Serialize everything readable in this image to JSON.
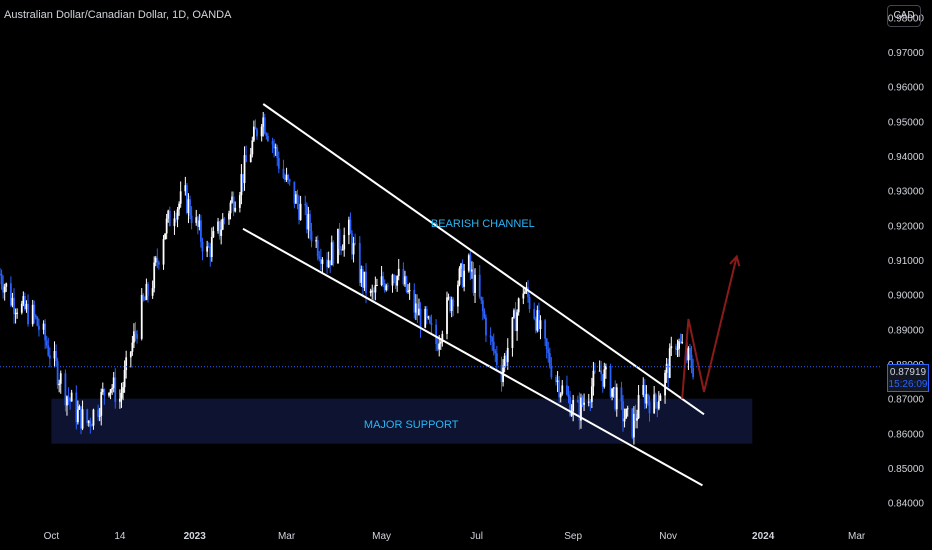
{
  "header": {
    "title": "Australian Dollar/Canadian Dollar, 1D, OANDA",
    "currency_button": "CAD"
  },
  "price_tag": {
    "price": "0.87919",
    "countdown": "15:26:09"
  },
  "colors": {
    "background": "#000000",
    "candle": "#ffffff",
    "candle_alt": "#2962ff",
    "channel_line": "#ffffff",
    "annotation_text": "#29b6f6",
    "projection": "#8b1a1a",
    "support_zone": "#0d1330",
    "price_line": "#2962ff",
    "axis_text": "#d1d4dc"
  },
  "annotations": {
    "bearish_channel": "BEARISH CHANNEL",
    "major_support": "MAJOR SUPPORT"
  },
  "chart_data": {
    "type": "candlestick",
    "title": "Australian Dollar/Canadian Dollar, 1D, OANDA",
    "ylim": [
      0.835,
      0.985
    ],
    "y_ticks": [
      "0.98000",
      "0.97000",
      "0.96000",
      "0.95000",
      "0.94000",
      "0.93000",
      "0.92000",
      "0.91000",
      "0.90000",
      "0.89000",
      "0.88000",
      "0.87000",
      "0.86000",
      "0.85000",
      "0.84000"
    ],
    "x_ticks": [
      "Oct",
      "14",
      "2023",
      "Mar",
      "May",
      "Jul",
      "Sep",
      "Nov",
      "2024",
      "Mar"
    ],
    "x_tick_dates": [
      "2022-10-01",
      "2022-11-14",
      "2023-01-01",
      "2023-03-01",
      "2023-05-01",
      "2023-07-01",
      "2023-09-01",
      "2023-11-01",
      "2024-01-01",
      "2024-03-01"
    ],
    "x_range": [
      "2022-08-29",
      "2024-03-16"
    ],
    "last_price": 0.87919,
    "closes": [
      [
        "2022-08-29",
        0.906
      ],
      [
        "2022-09-05",
        0.899
      ],
      [
        "2022-09-12",
        0.896
      ],
      [
        "2022-09-19",
        0.894
      ],
      [
        "2022-09-26",
        0.888
      ],
      [
        "2022-10-03",
        0.88
      ],
      [
        "2022-10-10",
        0.872
      ],
      [
        "2022-10-17",
        0.866
      ],
      [
        "2022-10-24",
        0.863
      ],
      [
        "2022-10-31",
        0.868
      ],
      [
        "2022-11-07",
        0.875
      ],
      [
        "2022-11-14",
        0.87
      ],
      [
        "2022-11-21",
        0.884
      ],
      [
        "2022-11-28",
        0.896
      ],
      [
        "2022-12-05",
        0.904
      ],
      [
        "2022-12-12",
        0.918
      ],
      [
        "2022-12-19",
        0.925
      ],
      [
        "2022-12-26",
        0.928
      ],
      [
        "2023-01-02",
        0.92
      ],
      [
        "2023-01-09",
        0.912
      ],
      [
        "2023-01-16",
        0.918
      ],
      [
        "2023-01-23",
        0.925
      ],
      [
        "2023-01-30",
        0.932
      ],
      [
        "2023-02-06",
        0.942
      ],
      [
        "2023-02-13",
        0.952
      ],
      [
        "2023-02-20",
        0.944
      ],
      [
        "2023-02-27",
        0.934
      ],
      [
        "2023-03-06",
        0.928
      ],
      [
        "2023-03-13",
        0.922
      ],
      [
        "2023-03-20",
        0.915
      ],
      [
        "2023-03-27",
        0.91
      ],
      [
        "2023-04-03",
        0.915
      ],
      [
        "2023-04-10",
        0.918
      ],
      [
        "2023-04-17",
        0.906
      ],
      [
        "2023-04-24",
        0.899
      ],
      [
        "2023-05-01",
        0.903
      ],
      [
        "2023-05-08",
        0.907
      ],
      [
        "2023-05-15",
        0.903
      ],
      [
        "2023-05-22",
        0.896
      ],
      [
        "2023-05-29",
        0.892
      ],
      [
        "2023-06-05",
        0.886
      ],
      [
        "2023-06-12",
        0.896
      ],
      [
        "2023-06-19",
        0.904
      ],
      [
        "2023-06-26",
        0.908
      ],
      [
        "2023-07-03",
        0.898
      ],
      [
        "2023-07-10",
        0.886
      ],
      [
        "2023-07-17",
        0.878
      ],
      [
        "2023-07-24",
        0.89
      ],
      [
        "2023-07-31",
        0.902
      ],
      [
        "2023-08-07",
        0.895
      ],
      [
        "2023-08-14",
        0.884
      ],
      [
        "2023-08-21",
        0.876
      ],
      [
        "2023-08-28",
        0.87
      ],
      [
        "2023-09-04",
        0.866
      ],
      [
        "2023-09-11",
        0.872
      ],
      [
        "2023-09-18",
        0.878
      ],
      [
        "2023-09-25",
        0.874
      ],
      [
        "2023-10-02",
        0.866
      ],
      [
        "2023-10-09",
        0.862
      ],
      [
        "2023-10-16",
        0.872
      ],
      [
        "2023-10-23",
        0.868
      ],
      [
        "2023-10-30",
        0.876
      ],
      [
        "2023-11-06",
        0.887
      ],
      [
        "2023-11-13",
        0.882
      ],
      [
        "2023-11-17",
        0.87919
      ]
    ],
    "lines": [
      {
        "name": "",
        "from": [
          "2023-02-14",
          0.955
        ],
        "to": [
          "2023-11-24",
          0.8655
        ]
      },
      {
        "name": "",
        "from": [
          "2023-02-01",
          0.919
        ],
        "to": [
          "2023-11-23",
          0.845
        ]
      }
    ],
    "zones": [
      {
        "label": "MAJOR SUPPORT",
        "from": "2022-10-01",
        "to": "2023-12-25",
        "y_low": 0.857,
        "y_high": 0.87
      }
    ],
    "projection": [
      [
        "2023-11-10",
        0.87
      ],
      [
        "2023-11-14",
        0.893
      ],
      [
        "2023-11-24",
        0.872
      ],
      [
        "2023-12-15",
        0.911
      ]
    ]
  }
}
